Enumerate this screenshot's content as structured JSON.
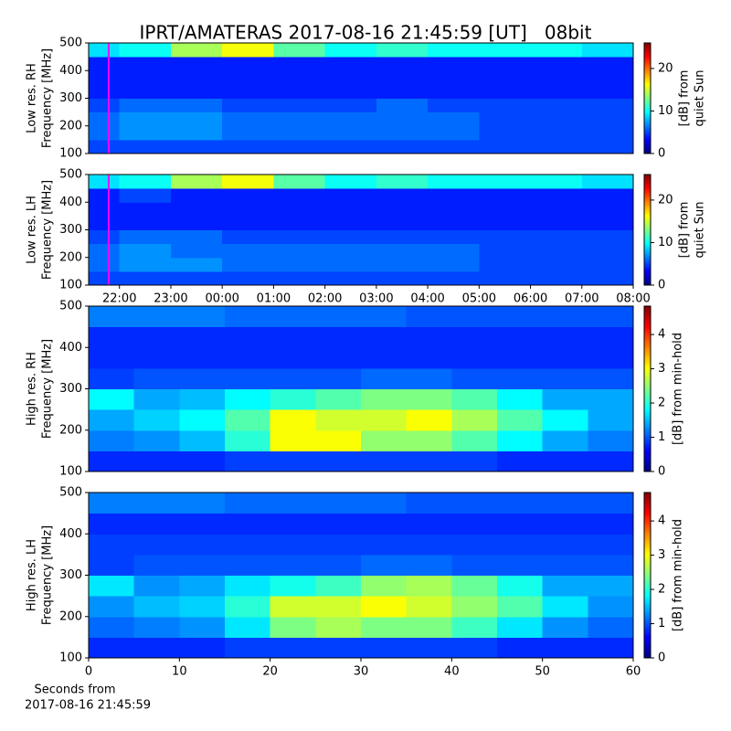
{
  "title": "IPRT/AMATERAS 2017-08-16 21:45:59 [UT]   08bit",
  "chart_data": [
    {
      "type": "heatmap",
      "ylabel": [
        "Low res. RH",
        "Frequency [MHz]"
      ],
      "colormap": "jet",
      "cursor_x": 21.79,
      "cursor_color": "#ff00ff",
      "xlim": [
        21.4,
        32
      ],
      "ylim": [
        100,
        500
      ],
      "yticks": [
        100,
        200,
        300,
        400,
        500
      ],
      "x_edges": [
        21.4,
        22,
        23,
        24,
        25,
        26,
        27,
        28,
        29,
        30,
        31,
        32
      ],
      "y_edges": [
        100,
        150,
        200,
        250,
        300,
        350,
        400,
        450,
        500
      ],
      "z": [
        [
          5,
          5,
          5,
          5,
          5,
          5,
          5,
          5,
          5,
          5,
          5
        ],
        [
          6,
          7,
          7,
          6,
          6,
          6,
          6,
          6,
          5,
          5,
          5
        ],
        [
          6,
          7,
          7,
          6,
          6,
          6,
          6,
          6,
          5,
          5,
          5
        ],
        [
          5,
          6,
          6,
          5,
          5,
          5,
          6,
          5,
          5,
          5,
          5
        ],
        [
          4,
          4,
          4,
          4,
          4,
          4,
          4,
          4,
          4,
          4,
          4
        ],
        [
          4,
          4,
          4,
          4,
          4,
          4,
          4,
          4,
          4,
          4,
          4
        ],
        [
          4,
          4,
          4,
          4,
          4,
          4,
          4,
          4,
          4,
          4,
          4
        ],
        [
          9,
          10,
          14,
          16,
          12,
          10,
          11,
          10,
          10,
          10,
          9
        ]
      ],
      "colorbar": {
        "label": [
          "[dB] from",
          "quiet Sun"
        ],
        "lim": [
          0,
          26
        ],
        "ticks": [
          0,
          10,
          20
        ]
      }
    },
    {
      "type": "heatmap",
      "ylabel": [
        "Low res. LH",
        "Frequency [MHz]"
      ],
      "colormap": "jet",
      "cursor_x": 21.79,
      "cursor_color": "#ff00ff",
      "xlim": [
        21.4,
        32
      ],
      "ylim": [
        100,
        500
      ],
      "yticks": [
        100,
        200,
        300,
        400,
        500
      ],
      "xticks": [
        {
          "value": 22,
          "label": "22:00"
        },
        {
          "value": 23,
          "label": "23:00"
        },
        {
          "value": 24,
          "label": "00:00"
        },
        {
          "value": 25,
          "label": "01:00"
        },
        {
          "value": 26,
          "label": "02:00"
        },
        {
          "value": 27,
          "label": "03:00"
        },
        {
          "value": 28,
          "label": "04:00"
        },
        {
          "value": 29,
          "label": "05:00"
        },
        {
          "value": 30,
          "label": "06:00"
        },
        {
          "value": 31,
          "label": "07:00"
        },
        {
          "value": 32,
          "label": "08:00"
        }
      ],
      "x_edges": [
        21.4,
        22,
        23,
        24,
        25,
        26,
        27,
        28,
        29,
        30,
        31,
        32
      ],
      "y_edges": [
        100,
        150,
        200,
        250,
        300,
        350,
        400,
        450,
        500
      ],
      "z": [
        [
          5,
          5,
          5,
          5,
          5,
          5,
          5,
          5,
          5,
          5,
          5
        ],
        [
          6,
          7,
          7,
          6,
          6,
          6,
          6,
          6,
          5,
          5,
          5
        ],
        [
          6,
          7,
          6,
          6,
          6,
          6,
          6,
          6,
          5,
          5,
          5
        ],
        [
          5,
          6,
          6,
          5,
          5,
          5,
          5,
          5,
          5,
          5,
          5
        ],
        [
          4,
          4,
          4,
          4,
          4,
          4,
          4,
          4,
          4,
          4,
          4
        ],
        [
          4,
          4,
          4,
          4,
          4,
          4,
          4,
          4,
          4,
          4,
          4
        ],
        [
          4,
          5,
          4,
          4,
          4,
          4,
          4,
          4,
          4,
          4,
          4
        ],
        [
          9,
          10,
          14,
          16,
          12,
          10,
          11,
          10,
          10,
          10,
          9
        ]
      ],
      "colorbar": {
        "label": [
          "[dB] from",
          "quiet Sun"
        ],
        "lim": [
          0,
          26
        ],
        "ticks": [
          0,
          10,
          20
        ]
      }
    },
    {
      "type": "heatmap",
      "ylabel": [
        "High res. RH",
        "Frequency [MHz]"
      ],
      "colormap": "jet",
      "xlim": [
        0,
        60
      ],
      "ylim": [
        100,
        500
      ],
      "yticks": [
        100,
        200,
        300,
        400,
        500
      ],
      "x_edges": [
        0,
        5,
        10,
        15,
        20,
        25,
        30,
        35,
        40,
        45,
        50,
        55,
        60
      ],
      "y_edges": [
        100,
        150,
        200,
        250,
        300,
        350,
        400,
        450,
        500
      ],
      "z": [
        [
          0.8,
          0.8,
          0.8,
          0.9,
          0.9,
          0.9,
          0.9,
          0.9,
          0.9,
          0.8,
          0.8,
          0.8
        ],
        [
          1.2,
          1.3,
          1.5,
          2.0,
          3.0,
          3.0,
          2.5,
          2.5,
          2.2,
          1.8,
          1.4,
          1.2
        ],
        [
          1.4,
          1.6,
          1.8,
          2.2,
          3.0,
          2.8,
          2.8,
          3.0,
          2.6,
          2.2,
          1.8,
          1.4
        ],
        [
          1.8,
          1.4,
          1.5,
          1.8,
          2.0,
          2.2,
          2.4,
          2.4,
          2.2,
          1.8,
          1.4,
          1.4
        ],
        [
          0.9,
          1.0,
          1.0,
          1.0,
          1.0,
          1.0,
          1.1,
          1.1,
          1.0,
          1.0,
          1.0,
          1.0
        ],
        [
          0.8,
          0.8,
          0.8,
          0.8,
          0.8,
          0.8,
          0.8,
          0.8,
          0.8,
          0.8,
          0.8,
          0.8
        ],
        [
          0.8,
          0.8,
          0.8,
          0.8,
          0.8,
          0.8,
          0.8,
          0.8,
          0.8,
          0.8,
          0.8,
          0.8
        ],
        [
          1.2,
          1.2,
          1.2,
          1.1,
          1.1,
          1.1,
          1.1,
          1.0,
          1.0,
          1.0,
          1.0,
          1.0
        ]
      ],
      "colorbar": {
        "label": [
          "[dB] from min-hold"
        ],
        "lim": [
          0,
          4.83
        ],
        "ticks": [
          0,
          1,
          2,
          3,
          4
        ]
      }
    },
    {
      "type": "heatmap",
      "ylabel": [
        "High res. LH",
        "Frequency [MHz]"
      ],
      "colormap": "jet",
      "xlim": [
        0,
        60
      ],
      "ylim": [
        100,
        500
      ],
      "yticks": [
        100,
        200,
        300,
        400,
        500
      ],
      "xticks": [
        0,
        10,
        20,
        30,
        40,
        50,
        60
      ],
      "xlabel": [
        "Seconds from",
        "2017-08-16 21:45:59"
      ],
      "x_edges": [
        0,
        5,
        10,
        15,
        20,
        25,
        30,
        35,
        40,
        45,
        50,
        55,
        60
      ],
      "y_edges": [
        100,
        150,
        200,
        250,
        300,
        350,
        400,
        450,
        500
      ],
      "z": [
        [
          0.8,
          0.8,
          0.8,
          0.9,
          0.9,
          0.9,
          0.9,
          0.9,
          0.9,
          0.8,
          0.8,
          0.8
        ],
        [
          1.1,
          1.2,
          1.3,
          1.7,
          2.4,
          2.6,
          2.4,
          2.4,
          2.1,
          1.7,
          1.3,
          1.1
        ],
        [
          1.3,
          1.5,
          1.6,
          2.0,
          2.8,
          2.8,
          3.0,
          2.8,
          2.5,
          2.2,
          1.7,
          1.3
        ],
        [
          1.7,
          1.3,
          1.4,
          1.7,
          1.9,
          2.1,
          2.5,
          2.6,
          2.3,
          1.9,
          1.4,
          1.4
        ],
        [
          0.9,
          1.0,
          1.0,
          1.0,
          1.0,
          1.0,
          1.1,
          1.1,
          1.0,
          1.0,
          1.0,
          1.0
        ],
        [
          0.9,
          0.9,
          0.9,
          0.9,
          0.9,
          0.9,
          0.9,
          0.9,
          0.9,
          0.9,
          0.9,
          0.9
        ],
        [
          0.8,
          0.8,
          0.8,
          0.8,
          0.8,
          0.8,
          0.8,
          0.8,
          0.8,
          0.8,
          0.8,
          0.8
        ],
        [
          1.2,
          1.2,
          1.2,
          1.1,
          1.1,
          1.1,
          1.1,
          1.0,
          1.0,
          1.0,
          1.0,
          1.0
        ]
      ],
      "colorbar": {
        "label": [
          "[dB] from min-hold"
        ],
        "lim": [
          0,
          4.83
        ],
        "ticks": [
          0,
          1,
          2,
          3,
          4
        ]
      }
    }
  ]
}
